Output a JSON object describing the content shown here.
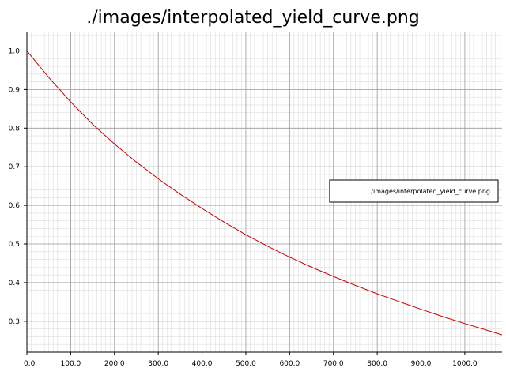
{
  "chart_data": {
    "type": "line",
    "title": "./images/interpolated_yield_curve.png",
    "xlabel": "",
    "ylabel": "",
    "xlim": [
      0,
      1085
    ],
    "ylim": [
      0.22,
      1.05
    ],
    "xticks": [
      0,
      100,
      200,
      300,
      400,
      500,
      600,
      700,
      800,
      900,
      1000
    ],
    "xtick_labels": [
      "0.0",
      "100.0",
      "200.0",
      "300.0",
      "400.0",
      "500.0",
      "600.0",
      "700.0",
      "800.0",
      "900.0",
      "1000.0"
    ],
    "yticks": [
      0.3,
      0.4,
      0.5,
      0.6,
      0.7,
      0.8,
      0.9,
      1.0
    ],
    "ytick_labels": [
      "0.3",
      "0.4",
      "0.5",
      "0.6",
      "0.7",
      "0.8",
      "0.9",
      "1.0"
    ],
    "grid": true,
    "legend_position": "right",
    "series": [
      {
        "name": "./images/interpolated_yield_curve.png",
        "color": "#cc0000",
        "x": [
          0,
          50,
          100,
          150,
          200,
          250,
          300,
          350,
          400,
          450,
          500,
          550,
          600,
          650,
          700,
          750,
          800,
          850,
          900,
          950,
          1000,
          1050,
          1085
        ],
        "y": [
          1.0,
          0.931,
          0.868,
          0.81,
          0.759,
          0.712,
          0.669,
          0.629,
          0.592,
          0.557,
          0.524,
          0.494,
          0.466,
          0.44,
          0.416,
          0.393,
          0.371,
          0.351,
          0.331,
          0.312,
          0.294,
          0.277,
          0.265
        ]
      }
    ]
  }
}
